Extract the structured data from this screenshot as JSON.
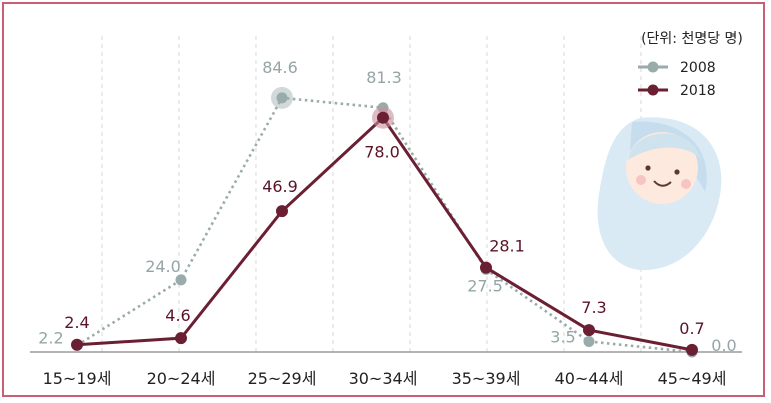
{
  "chart_data": {
    "type": "line",
    "unit_label": "(단위: 천명당 명)",
    "categories": [
      "15~19세",
      "20~24세",
      "25~29세",
      "30~34세",
      "35~39세",
      "40~44세",
      "45~49세"
    ],
    "series": [
      {
        "name": "2008",
        "values": [
          2.2,
          24.0,
          84.6,
          81.3,
          27.5,
          3.5,
          0.0
        ],
        "labels": [
          "2.2",
          "24.0",
          "84.6",
          "81.3",
          "27.5",
          "3.5",
          "0.0"
        ],
        "color": "#9aabab",
        "style": "dotted"
      },
      {
        "name": "2018",
        "values": [
          2.4,
          4.6,
          46.9,
          78.0,
          28.1,
          7.3,
          0.7
        ],
        "labels": [
          "2.4",
          "4.6",
          "46.9",
          "78.0",
          "28.1",
          "7.3",
          "0.7"
        ],
        "color": "#6b1f32",
        "style": "solid"
      }
    ],
    "ylim": [
      0,
      90
    ],
    "grid": "vertical-dashed",
    "legend_position": "top-right",
    "illustration": "baby-icon"
  }
}
